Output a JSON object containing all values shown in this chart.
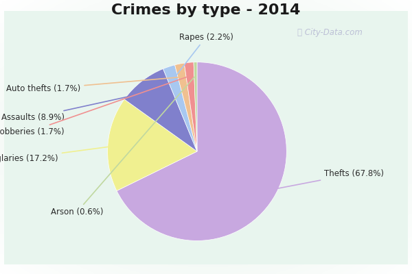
{
  "title": "Crimes by type - 2014",
  "labels": [
    "Thefts",
    "Burglaries",
    "Assaults",
    "Rapes",
    "Auto thefts",
    "Robberies",
    "Arson"
  ],
  "percentages": [
    67.8,
    17.2,
    8.9,
    2.2,
    1.7,
    1.7,
    0.6
  ],
  "colors": [
    "#c8a8e0",
    "#f0f090",
    "#8080cc",
    "#a8c8f0",
    "#f0c090",
    "#f09090",
    "#c0d8a0"
  ],
  "title_fontsize": 16,
  "background_outer": "#00e8e8",
  "label_fontsize": 8.5,
  "startangle": 90,
  "watermark": "City-Data.com"
}
